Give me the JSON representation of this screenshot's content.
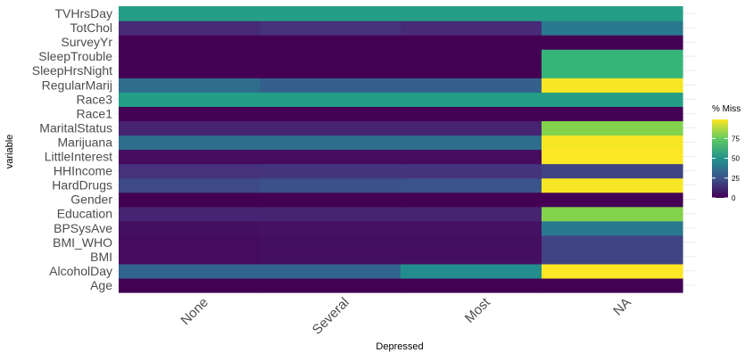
{
  "chart_data": {
    "type": "heatmap",
    "xlabel": "Depressed",
    "ylabel": "variable",
    "x_categories": [
      "None",
      "Several",
      "Most",
      "NA"
    ],
    "y_categories": [
      "Age",
      "AlcoholDay",
      "BMI",
      "BMI_WHO",
      "BPSysAve",
      "Education",
      "Gender",
      "HardDrugs",
      "HHIncome",
      "LittleInterest",
      "Marijuana",
      "MaritalStatus",
      "Race1",
      "Race3",
      "RegularMarij",
      "SleepHrsNight",
      "SleepTrouble",
      "SurveyYr",
      "TotChol",
      "TVHrsDay"
    ],
    "values": [
      [
        0,
        0,
        0,
        0
      ],
      [
        32,
        32,
        48,
        99
      ],
      [
        3,
        4,
        4,
        20
      ],
      [
        3,
        4,
        4,
        20
      ],
      [
        4,
        5,
        5,
        40
      ],
      [
        10,
        10,
        10,
        80
      ],
      [
        0,
        0,
        0,
        0
      ],
      [
        22,
        24,
        25,
        98
      ],
      [
        14,
        15,
        15,
        20
      ],
      [
        3,
        3,
        3,
        99
      ],
      [
        35,
        35,
        35,
        98
      ],
      [
        10,
        10,
        10,
        80
      ],
      [
        0,
        0,
        0,
        0
      ],
      [
        55,
        55,
        55,
        55
      ],
      [
        35,
        30,
        30,
        98
      ],
      [
        0,
        0,
        0,
        65
      ],
      [
        0,
        0,
        0,
        65
      ],
      [
        0,
        0,
        0,
        0
      ],
      [
        12,
        14,
        12,
        40
      ],
      [
        55,
        55,
        55,
        55
      ]
    ],
    "colorbar": {
      "title": "% Miss",
      "ticks": [
        0,
        25,
        50,
        75
      ],
      "range": [
        0,
        99
      ]
    },
    "grid": true,
    "legend_position": "right"
  }
}
